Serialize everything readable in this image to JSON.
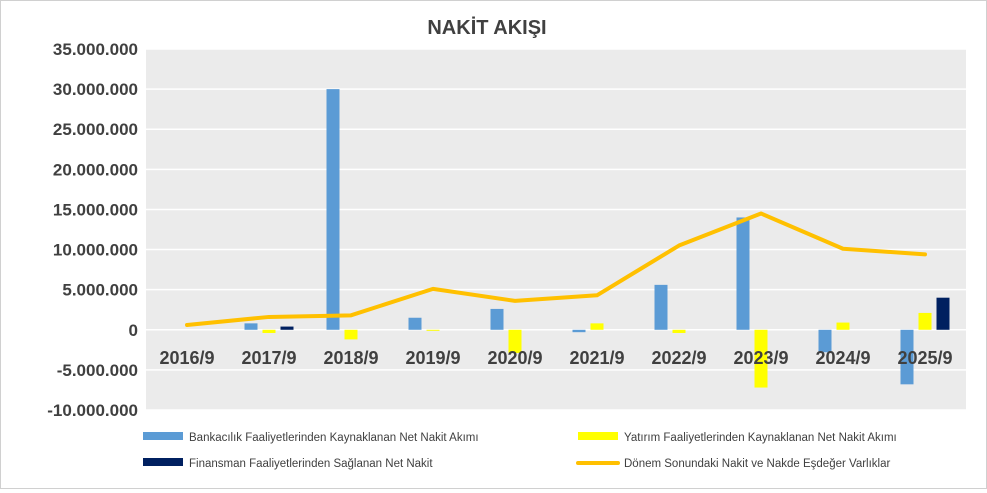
{
  "chart_data": {
    "type": "bar",
    "title": "NAKİT AKIŞI",
    "categories": [
      "2016/9",
      "2017/9",
      "2018/9",
      "2019/9",
      "2020/9",
      "2021/9",
      "2022/9",
      "2023/9",
      "2024/9",
      "2025/9"
    ],
    "ylim": [
      -10000000,
      35000000
    ],
    "y_ticks": [
      {
        "value": 35000000,
        "label": "35.000.000"
      },
      {
        "value": 30000000,
        "label": "30.000.000"
      },
      {
        "value": 25000000,
        "label": "25.000.000"
      },
      {
        "value": 20000000,
        "label": "20.000.000"
      },
      {
        "value": 15000000,
        "label": "15.000.000"
      },
      {
        "value": 10000000,
        "label": "10.000.000"
      },
      {
        "value": 5000000,
        "label": "5.000.000"
      },
      {
        "value": 0,
        "label": "0"
      },
      {
        "value": -5000000,
        "label": "-5.000.000"
      },
      {
        "value": -10000000,
        "label": "-10.000.000"
      }
    ],
    "grid": true,
    "legend_position": "bottom",
    "series": [
      {
        "name": "Bankacılık Faaliyetlerinden Kaynaklanan Net Nakit Akımı",
        "type": "bar",
        "color": "#5b9bd5",
        "values": [
          0,
          800000,
          30000000,
          1500000,
          2600000,
          -300000,
          5600000,
          14000000,
          -2800000,
          -6800000
        ]
      },
      {
        "name": "Yatırım Faaliyetlerinden Kaynaklanan Net Nakit Akımı",
        "type": "bar",
        "color": "#ffff00",
        "values": [
          0,
          -400000,
          -1200000,
          -100000,
          -2900000,
          800000,
          -400000,
          -7200000,
          900000,
          2100000
        ]
      },
      {
        "name": "Finansman Faaliyetlerinden Sağlanan Net Nakit",
        "type": "bar",
        "color": "#002060",
        "values": [
          0,
          400000,
          0,
          0,
          0,
          0,
          0,
          0,
          0,
          4000000
        ]
      },
      {
        "name": "Dönem Sonundaki Nakit ve Nakde Eşdeğer Varlıklar",
        "type": "line",
        "color": "#ffc000",
        "values": [
          600000,
          1600000,
          1800000,
          5100000,
          3600000,
          4300000,
          10500000,
          14500000,
          10100000,
          9400000
        ]
      }
    ]
  }
}
